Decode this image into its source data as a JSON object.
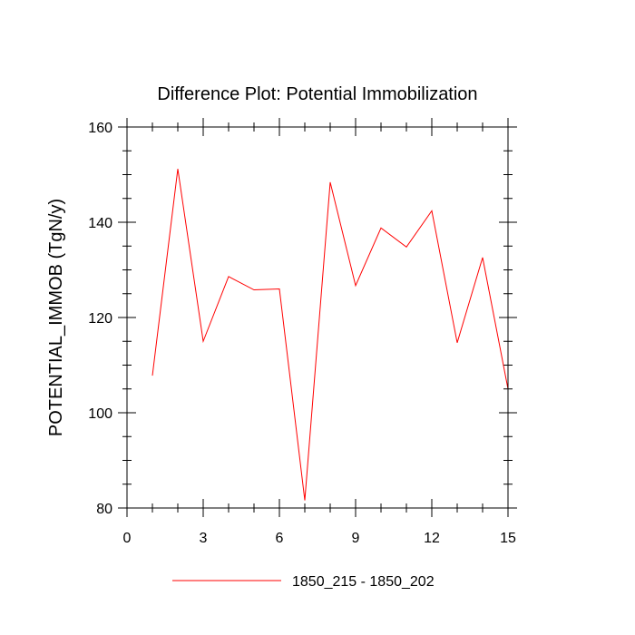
{
  "chart_data": {
    "type": "line",
    "title": "Difference Plot: Potential Immobilization",
    "xlabel": "",
    "ylabel": "POTENTIAL_IMMOB  (TgN/y)",
    "xlim": [
      0,
      15
    ],
    "ylim": [
      80,
      160
    ],
    "x_ticks": [
      "0",
      "3",
      "6",
      "9",
      "12",
      "15"
    ],
    "y_ticks": [
      "80",
      "100",
      "120",
      "140",
      "160"
    ],
    "grid": false,
    "legend_position": "bottom-center",
    "series": [
      {
        "name": "1850_215 - 1850_202",
        "color": "#ff0000",
        "x": [
          1,
          2,
          3,
          4,
          5,
          6,
          7,
          8,
          9,
          10,
          11,
          12,
          13,
          14,
          15
        ],
        "values": [
          107.8,
          151.2,
          115.0,
          128.6,
          125.8,
          126.0,
          81.6,
          148.4,
          126.7,
          138.8,
          134.8,
          142.4,
          114.7,
          132.6,
          105.0
        ]
      }
    ]
  }
}
